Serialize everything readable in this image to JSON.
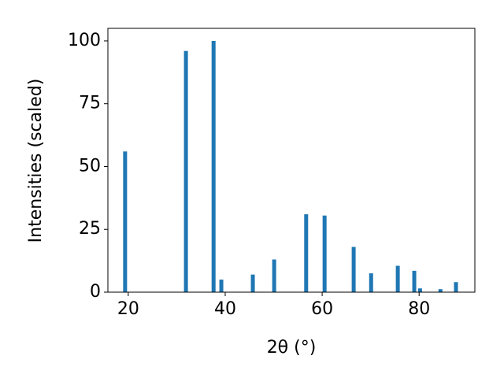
{
  "chart_data": {
    "type": "bar",
    "xlabel": "2θ (°)",
    "ylabel": "Intensities (scaled)",
    "x": [
      19.35,
      31.9,
      37.6,
      39.2,
      45.7,
      50.1,
      56.7,
      60.5,
      66.5,
      70.1,
      75.6,
      79.0,
      80.2,
      84.4,
      87.6
    ],
    "values": [
      56,
      96,
      100,
      5,
      7,
      13,
      31,
      30.5,
      18,
      7.5,
      10.5,
      8.5,
      1.5,
      1.2,
      4
    ],
    "color": "#1f77b4",
    "xlim": [
      15.8,
      91.5
    ],
    "xticks": [
      20,
      40,
      60,
      80
    ],
    "ylim": [
      0,
      105
    ],
    "yticks": [
      0,
      25,
      50,
      75,
      100
    ]
  }
}
